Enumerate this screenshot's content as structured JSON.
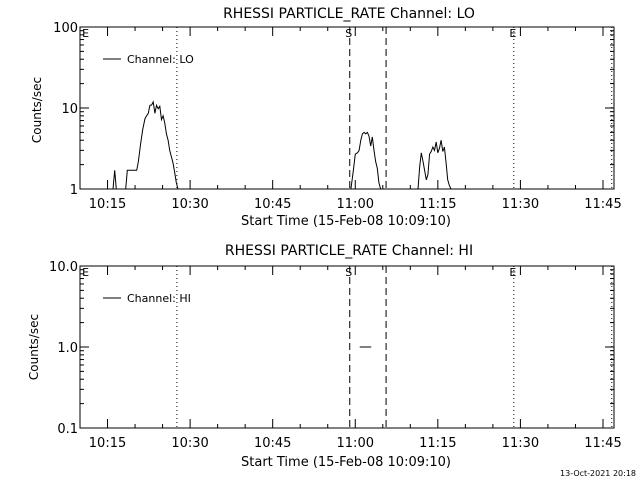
{
  "chart_data": [
    {
      "type": "line",
      "title": "RHESSI PARTICLE_RATE Channel: LO",
      "xlabel": "Start Time (15-Feb-08 10:09:10)",
      "ylabel": "Counts/sec",
      "yscale": "log",
      "ylim": [
        1,
        100
      ],
      "xlim_minutes": [
        10,
        107
      ],
      "xticks": [
        {
          "m": 15,
          "label": "10:15"
        },
        {
          "m": 30,
          "label": "10:30"
        },
        {
          "m": 45,
          "label": "10:45"
        },
        {
          "m": 60,
          "label": "11:00"
        },
        {
          "m": 75,
          "label": "11:15"
        },
        {
          "m": 90,
          "label": "11:30"
        },
        {
          "m": 105,
          "label": "11:45"
        }
      ],
      "yticks": [
        {
          "v": 1,
          "label": "1"
        },
        {
          "v": 10,
          "label": "10"
        },
        {
          "v": 100,
          "label": "100"
        }
      ],
      "legend": {
        "label": "Channel: LO",
        "position": "top-left"
      },
      "markers": [
        {
          "m": 10.2,
          "label": "E",
          "style": "none"
        },
        {
          "m": 27.6,
          "label": "",
          "style": "dotted"
        },
        {
          "m": 59.0,
          "label": "S",
          "style": "dashed"
        },
        {
          "m": 65.6,
          "label": "",
          "style": "dashed"
        },
        {
          "m": 88.8,
          "label": "E",
          "style": "dotted"
        },
        {
          "m": 106.6,
          "label": "",
          "style": "dotted"
        }
      ],
      "series": [
        {
          "x": [
            16.0,
            16.3,
            16.6,
            16.9,
            18.3,
            18.6,
            18.9,
            19.2,
            19.8,
            20.3,
            20.6,
            21.0,
            21.4,
            21.8,
            22.1,
            22.4,
            22.7,
            23.0,
            23.3,
            23.6,
            23.9,
            24.2,
            24.5,
            24.8,
            25.1,
            25.4,
            25.7,
            26.0,
            26.3,
            26.6,
            26.9,
            27.2,
            27.5,
            27.8
          ],
          "y": [
            1,
            1.7,
            1,
            1,
            1,
            1.7,
            1.7,
            1.7,
            1.7,
            1.7,
            2.2,
            3.6,
            5.5,
            7.4,
            8.0,
            8.6,
            10.8,
            10.9,
            11.9,
            8.6,
            10.8,
            9.8,
            10.5,
            7.2,
            8.0,
            6.5,
            4.8,
            4.0,
            3.0,
            2.5,
            2.1,
            1.6,
            1.2,
            1
          ],
          "gaps": [
            {
              "from": 16.9,
              "to": 18.3
            }
          ]
        },
        {
          "x": [
            59.2,
            59.6,
            60.0,
            60.4,
            60.7,
            61.0,
            61.3,
            61.6,
            61.9,
            62.2,
            62.5,
            62.8,
            63.1,
            63.4,
            63.7,
            64.0,
            64.3,
            64.6,
            64.9,
            65.2,
            65.5
          ],
          "y": [
            1,
            1.6,
            2.7,
            2.8,
            3.0,
            4.0,
            4.8,
            5.0,
            4.8,
            5.0,
            4.5,
            3.4,
            4.4,
            3.0,
            2.2,
            1.8,
            1.2,
            1,
            1,
            1,
            1
          ]
        },
        {
          "x": [
            71.4,
            71.7,
            72.0,
            72.3,
            72.6,
            72.9,
            73.2,
            73.5,
            73.8,
            74.1,
            74.4,
            74.7,
            75.0,
            75.3,
            75.6,
            75.9,
            76.2,
            76.5,
            76.8,
            77.1,
            77.4,
            77.7,
            78.0,
            78.3,
            78.6
          ],
          "y": [
            1,
            1.9,
            2.8,
            2.2,
            1.7,
            1.3,
            1.5,
            2.7,
            2.9,
            3.3,
            3.0,
            3.8,
            2.8,
            3.2,
            4.0,
            2.9,
            3.3,
            2.1,
            1.3,
            1.1,
            1,
            1,
            1,
            1,
            1
          ]
        }
      ]
    },
    {
      "type": "line",
      "title": "RHESSI PARTICLE_RATE Channel: HI",
      "xlabel": "Start Time (15-Feb-08 10:09:10)",
      "ylabel": "Counts/sec",
      "yscale": "log",
      "ylim": [
        0.1,
        10
      ],
      "xlim_minutes": [
        10,
        107
      ],
      "xticks": [
        {
          "m": 15,
          "label": "10:15"
        },
        {
          "m": 30,
          "label": "10:30"
        },
        {
          "m": 45,
          "label": "10:45"
        },
        {
          "m": 60,
          "label": "11:00"
        },
        {
          "m": 75,
          "label": "11:15"
        },
        {
          "m": 90,
          "label": "11:30"
        },
        {
          "m": 105,
          "label": "11:45"
        }
      ],
      "yticks": [
        {
          "v": 0.1,
          "label": "0.1"
        },
        {
          "v": 1,
          "label": "1.0"
        },
        {
          "v": 10,
          "label": "10.0"
        }
      ],
      "legend": {
        "label": "Channel: HI",
        "position": "top-left"
      },
      "markers": [
        {
          "m": 10.2,
          "label": "E",
          "style": "none"
        },
        {
          "m": 27.6,
          "label": "",
          "style": "dotted"
        },
        {
          "m": 59.0,
          "label": "S",
          "style": "dashed"
        },
        {
          "m": 65.6,
          "label": "",
          "style": "dashed"
        },
        {
          "m": 88.8,
          "label": "E",
          "style": "dotted"
        },
        {
          "m": 106.6,
          "label": "",
          "style": "dotted"
        }
      ],
      "series": [
        {
          "x": [
            60.8,
            62.9
          ],
          "y": [
            1,
            1
          ]
        }
      ]
    }
  ],
  "footer": {
    "timestamp": "13-Oct-2021 20:18"
  }
}
